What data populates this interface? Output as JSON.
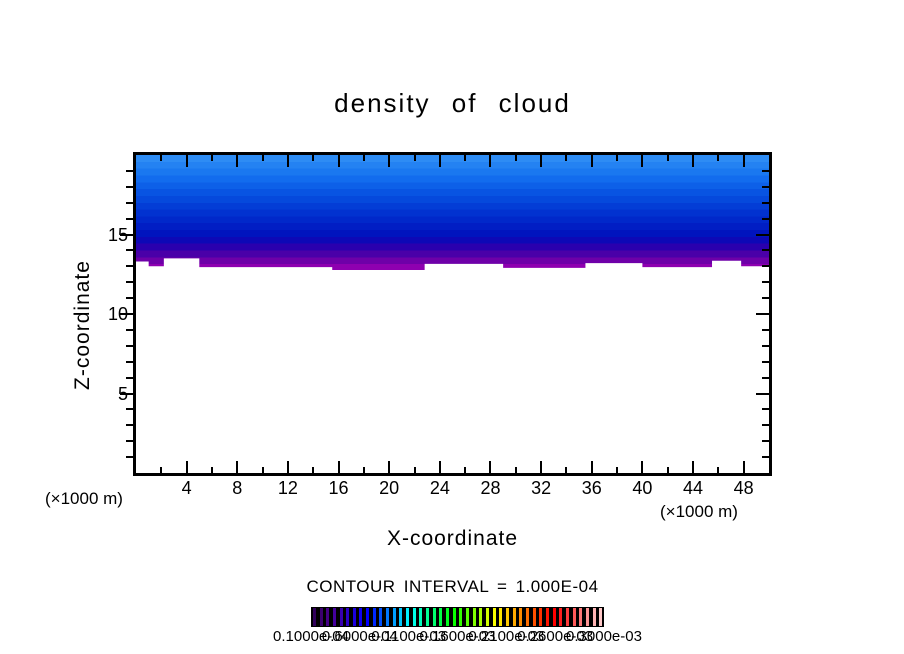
{
  "title": "density of cloud",
  "axes": {
    "x": {
      "label": "X-coordinate",
      "unit": "(×1000 m)",
      "min": 0,
      "max": 50,
      "major_ticks": [
        4,
        8,
        12,
        16,
        20,
        24,
        28,
        32,
        36,
        40,
        44,
        48
      ],
      "minor_step": 2
    },
    "y": {
      "label": "Z-coordinate",
      "min": 0,
      "max": 20,
      "major_ticks": [
        5,
        10,
        15
      ],
      "minor_step": 1
    }
  },
  "contour_note": "CONTOUR INTERVAL = 1.000E-04",
  "colorbar": {
    "background": "#000000",
    "stripe_colors": [
      "#30005a",
      "#3c0070",
      "#440086",
      "#44009c",
      "#3800b2",
      "#2a00c8",
      "#1c00de",
      "#0e00f4",
      "#0000ff",
      "#0028ff",
      "#0050ff",
      "#0078ff",
      "#00a0ff",
      "#00c8ff",
      "#00f0ff",
      "#00ffe6",
      "#00ffbe",
      "#00ff96",
      "#00ff6e",
      "#00ff46",
      "#00ff1e",
      "#0aff00",
      "#32ff00",
      "#5aff00",
      "#82ff00",
      "#aaff00",
      "#d2ff00",
      "#faff00",
      "#ffe600",
      "#ffc800",
      "#ffaa00",
      "#ff8c00",
      "#ff6e00",
      "#ff5000",
      "#ff3200",
      "#ff1400",
      "#ff0000",
      "#ff1e1e",
      "#ff3c3c",
      "#ff5a5a",
      "#ff7878",
      "#ff9696",
      "#ffb4b4",
      "#ffc8c8"
    ],
    "labels": [
      "0.1000e-04",
      "0.6000e-04",
      "0.1100e-03",
      "0.1600e-03",
      "0.2100e-03",
      "0.2600e-03",
      "0.3000e-03"
    ]
  },
  "chart_data": {
    "type": "heatmap",
    "subtype": "filled-contour",
    "title": "density of cloud",
    "xlabel": "X-coordinate (×1000 m)",
    "ylabel": "Z-coordinate (×1000 m)",
    "xlim": [
      0,
      50
    ],
    "ylim": [
      0,
      20
    ],
    "grid": false,
    "legend_position": "bottom-colorbar",
    "contour_interval": 0.0001,
    "cloud_top_z": 20,
    "cloud_band_colors_top_to_bottom": [
      "#2e8cf4",
      "#2482f2",
      "#1a78f0",
      "#126cee",
      "#0d60e8",
      "#0854e2",
      "#0549dc",
      "#033dd6",
      "#0232d0",
      "#0128ca",
      "#011ec4",
      "#0014be",
      "#0d08b6",
      "#2a00ae",
      "#4a00a8",
      "#6e00a8",
      "#8e00b0"
    ],
    "cloud_base_profile": [
      [
        0,
        13.3
      ],
      [
        0.8,
        13.3
      ],
      [
        1.0,
        13.0
      ],
      [
        2.2,
        13.5
      ],
      [
        4.5,
        13.5
      ],
      [
        5.0,
        12.95
      ],
      [
        15.0,
        12.95
      ],
      [
        15.5,
        12.77
      ],
      [
        22.0,
        12.77
      ],
      [
        22.8,
        13.15
      ],
      [
        28.5,
        13.15
      ],
      [
        29.0,
        12.9
      ],
      [
        34.8,
        12.9
      ],
      [
        35.5,
        13.2
      ],
      [
        39.5,
        13.2
      ],
      [
        40.0,
        12.95
      ],
      [
        45.0,
        12.95
      ],
      [
        45.5,
        13.35
      ],
      [
        47.2,
        13.35
      ],
      [
        47.8,
        13.0
      ],
      [
        50.0,
        13.0
      ]
    ],
    "note": "Filled contour bands of cloud density occupying z≈13 to 20 across all x; values shaded from light blue (top) through deep blue to purple at cloud base."
  }
}
